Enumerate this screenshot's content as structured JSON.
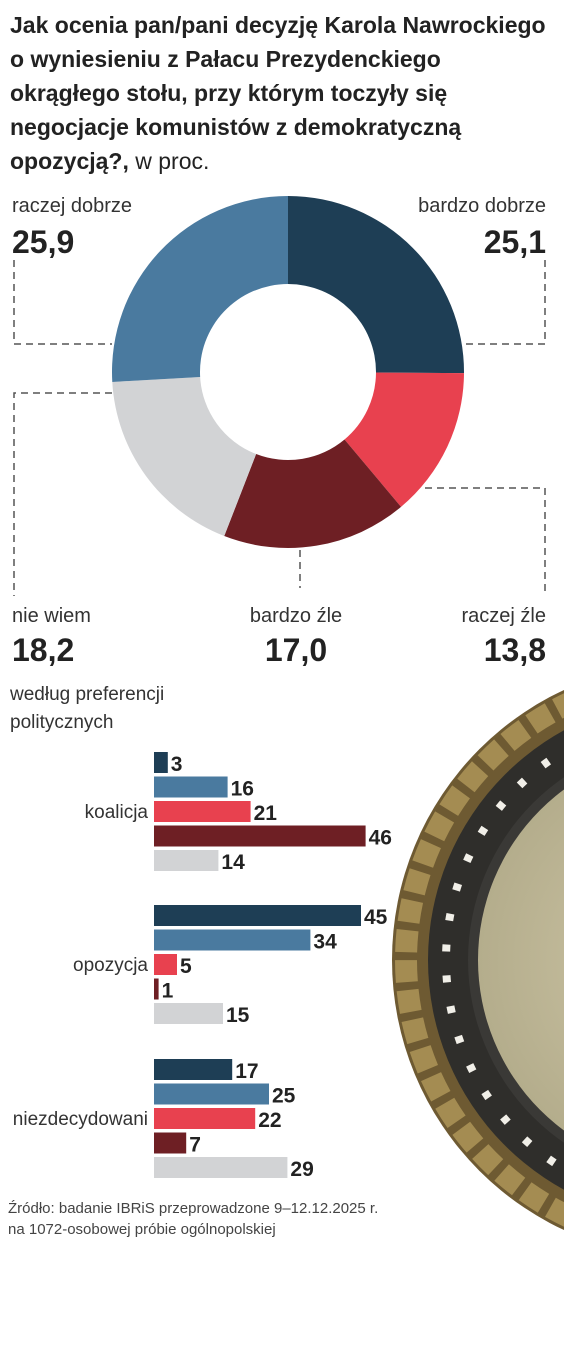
{
  "title_main": "Jak ocenia pan/pani decyzję Karola Nawrockiego o wyniesieniu z Pałacu Prezydenckiego okrągłego stołu, przy którym toczyły się negocjacje komunistów z demokratyczną opozycją?,",
  "title_unit": " w proc.",
  "colors": {
    "bardzo_dobrze": "#1e3e55",
    "raczej_dobrze": "#4a7a9f",
    "raczej_zle": "#e8414f",
    "bardzo_zle": "#6e1f24",
    "nie_wiem": "#d2d3d5"
  },
  "chart_data": [
    {
      "type": "pie",
      "style": "donut",
      "slices": [
        {
          "label": "bardzo dobrze",
          "value": 25.1,
          "display": "25,1",
          "color": "#1e3e55"
        },
        {
          "label": "raczej źle",
          "value": 13.8,
          "display": "13,8",
          "color": "#e8414f"
        },
        {
          "label": "bardzo źle",
          "value": 17.0,
          "display": "17,0",
          "color": "#6e1f24"
        },
        {
          "label": "nie wiem",
          "value": 18.2,
          "display": "18,2",
          "color": "#d2d3d5"
        },
        {
          "label": "raczej dobrze",
          "value": 25.9,
          "display": "25,9",
          "color": "#4a7a9f"
        }
      ]
    },
    {
      "type": "bar",
      "orientation": "horizontal",
      "heading": "według preferencji politycznych",
      "series_colors": [
        "#1e3e55",
        "#4a7a9f",
        "#e8414f",
        "#6e1f24",
        "#d2d3d5"
      ],
      "groups": [
        {
          "name": "koalicja",
          "values": [
            3,
            16,
            21,
            46,
            14
          ]
        },
        {
          "name": "opozycja",
          "values": [
            45,
            34,
            5,
            1,
            15
          ]
        },
        {
          "name": "niezdecydowani",
          "values": [
            17,
            25,
            22,
            7,
            29
          ]
        }
      ]
    }
  ],
  "source_line1": "Źródło: badanie IBRiS przeprowadzone  9–12.12.2025 r.",
  "source_line2": "na 1072-osobowej próbie ogólnopolskiej"
}
